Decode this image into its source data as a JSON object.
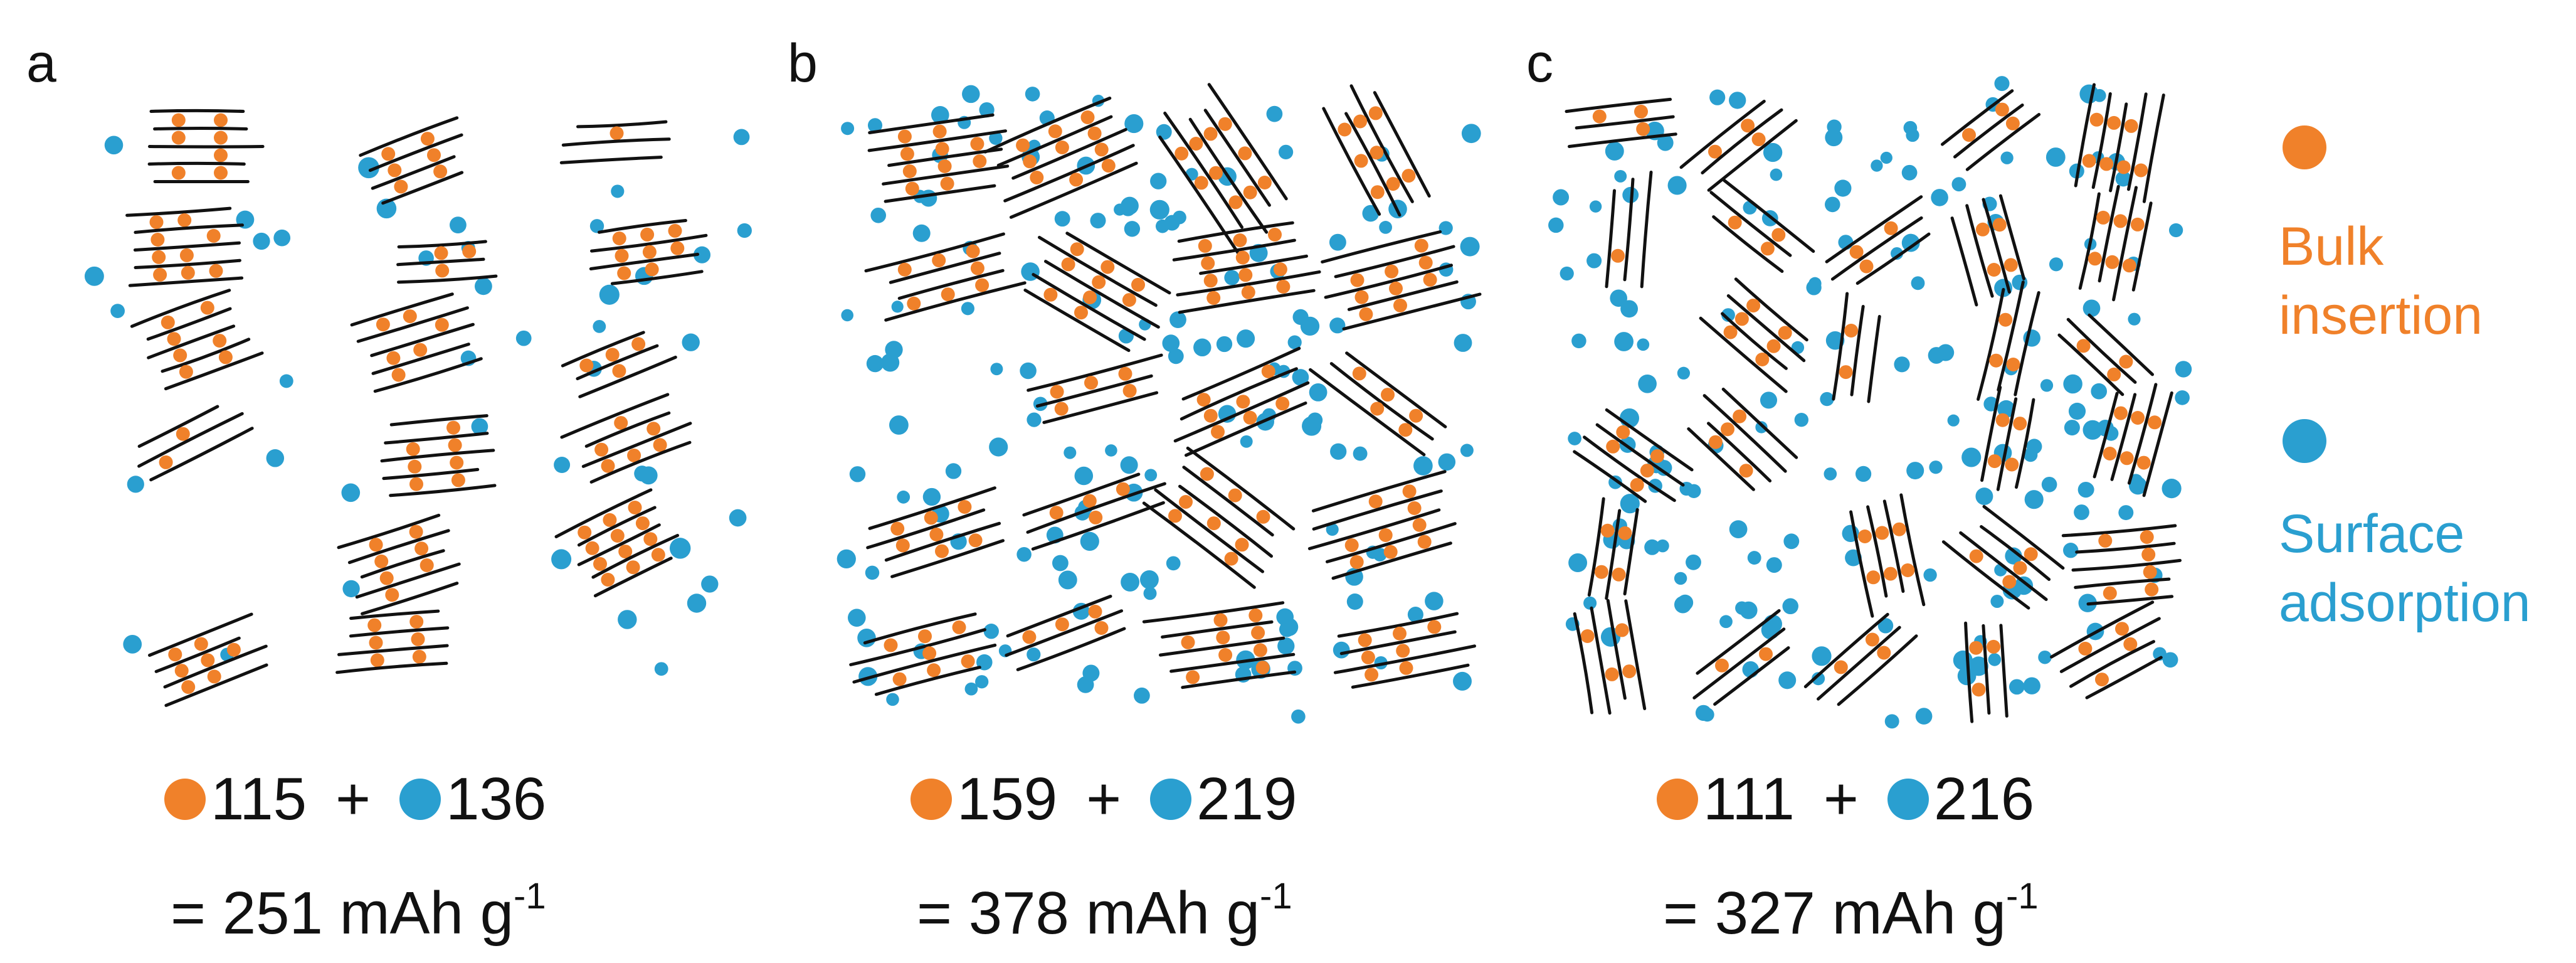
{
  "colors": {
    "bulk": "#f0812a",
    "surface": "#2a9fd0",
    "line": "#111111"
  },
  "legend": {
    "bulk": {
      "line1": "Bulk",
      "line2": "insertion"
    },
    "surface": {
      "line1": "Surface",
      "line2": "adsorption"
    }
  },
  "panels": [
    {
      "label": "a",
      "bulk": "115",
      "plus": "+",
      "surface": "136",
      "total": "= 251 mAh g",
      "exp": "-1"
    },
    {
      "label": "b",
      "bulk": "159",
      "plus": "+",
      "surface": "219",
      "total": "= 378 mAh g",
      "exp": "-1"
    },
    {
      "label": "c",
      "bulk": "111",
      "plus": "+",
      "surface": "216",
      "total": "= 327 mAh g",
      "exp": "-1"
    }
  ]
}
